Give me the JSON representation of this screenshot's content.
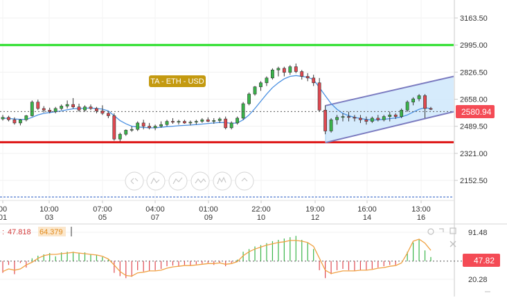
{
  "chart_data": [
    {
      "type": "candlestick",
      "title": "TA - ETH - USD",
      "current_price": "2580.94",
      "y_tick_labels": [
        "3163.50",
        "2995.00",
        "2826.50",
        "2658.00",
        "2489.50",
        "2321.00",
        "2152.50"
      ],
      "ylim": [
        2060,
        3260
      ],
      "x_tick_labels": [
        {
          "time": "00",
          "date": "01"
        },
        {
          "time": "10:00",
          "date": "03"
        },
        {
          "time": "07:00",
          "date": "05"
        },
        {
          "time": "04:00",
          "date": "07"
        },
        {
          "time": "01:00",
          "date": "09"
        },
        {
          "time": "22:00",
          "date": "10"
        },
        {
          "time": "19:00",
          "date": "12"
        },
        {
          "time": "16:00",
          "date": "14"
        },
        {
          "time": "13:00",
          "date": "16"
        }
      ],
      "horizontal_levels": [
        {
          "value": 2995,
          "color": "#22dd22"
        },
        {
          "value": 2390,
          "color": "#dd1111"
        }
      ],
      "channel": {
        "upper": [
          2618,
          2800
        ],
        "lower": [
          2388,
          2580
        ],
        "fill": "#cfe8fb",
        "stroke": "#7b7bc0"
      },
      "candles": [
        [
          2535,
          2560,
          2525,
          2545
        ],
        [
          2545,
          2555,
          2520,
          2530
        ],
        [
          2530,
          2545,
          2500,
          2510
        ],
        [
          2510,
          2535,
          2495,
          2530
        ],
        [
          2530,
          2560,
          2520,
          2555
        ],
        [
          2555,
          2650,
          2550,
          2640
        ],
        [
          2640,
          2655,
          2590,
          2600
        ],
        [
          2600,
          2615,
          2575,
          2590
        ],
        [
          2590,
          2605,
          2570,
          2580
        ],
        [
          2580,
          2610,
          2570,
          2600
        ],
        [
          2600,
          2625,
          2590,
          2615
        ],
        [
          2615,
          2650,
          2600,
          2625
        ],
        [
          2625,
          2665,
          2600,
          2610
        ],
        [
          2610,
          2630,
          2580,
          2590
        ],
        [
          2590,
          2620,
          2580,
          2610
        ],
        [
          2610,
          2625,
          2590,
          2600
        ],
        [
          2600,
          2610,
          2570,
          2585
        ],
        [
          2585,
          2620,
          2560,
          2570
        ],
        [
          2570,
          2580,
          2540,
          2555
        ],
        [
          2555,
          2570,
          2400,
          2410
        ],
        [
          2410,
          2450,
          2395,
          2440
        ],
        [
          2440,
          2470,
          2430,
          2465
        ],
        [
          2465,
          2490,
          2455,
          2470
        ],
        [
          2470,
          2520,
          2460,
          2510
        ],
        [
          2510,
          2530,
          2470,
          2490
        ],
        [
          2490,
          2510,
          2470,
          2480
        ],
        [
          2480,
          2500,
          2465,
          2490
        ],
        [
          2490,
          2520,
          2480,
          2500
        ],
        [
          2500,
          2530,
          2490,
          2520
        ],
        [
          2520,
          2540,
          2505,
          2515
        ],
        [
          2515,
          2530,
          2500,
          2520
        ],
        [
          2520,
          2530,
          2505,
          2510
        ],
        [
          2510,
          2525,
          2495,
          2515
        ],
        [
          2515,
          2530,
          2500,
          2520
        ],
        [
          2520,
          2540,
          2510,
          2530
        ],
        [
          2530,
          2545,
          2515,
          2520
        ],
        [
          2520,
          2540,
          2505,
          2525
        ],
        [
          2525,
          2545,
          2510,
          2535
        ],
        [
          2535,
          2550,
          2470,
          2480
        ],
        [
          2480,
          2520,
          2470,
          2510
        ],
        [
          2510,
          2550,
          2500,
          2540
        ],
        [
          2540,
          2640,
          2530,
          2630
        ],
        [
          2630,
          2700,
          2620,
          2690
        ],
        [
          2690,
          2740,
          2680,
          2735
        ],
        [
          2735,
          2770,
          2710,
          2760
        ],
        [
          2760,
          2800,
          2740,
          2790
        ],
        [
          2790,
          2850,
          2780,
          2840
        ],
        [
          2840,
          2860,
          2800,
          2850
        ],
        [
          2850,
          2860,
          2800,
          2825
        ],
        [
          2825,
          2870,
          2810,
          2860
        ],
        [
          2860,
          2880,
          2820,
          2830
        ],
        [
          2830,
          2840,
          2780,
          2800
        ],
        [
          2800,
          2820,
          2770,
          2790
        ],
        [
          2790,
          2810,
          2740,
          2760
        ],
        [
          2760,
          2790,
          2580,
          2590
        ],
        [
          2590,
          2620,
          2440,
          2460
        ],
        [
          2460,
          2540,
          2450,
          2530
        ],
        [
          2530,
          2560,
          2500,
          2545
        ],
        [
          2545,
          2570,
          2520,
          2550
        ],
        [
          2550,
          2580,
          2520,
          2545
        ],
        [
          2545,
          2560,
          2520,
          2540
        ],
        [
          2540,
          2560,
          2510,
          2530
        ],
        [
          2530,
          2550,
          2500,
          2520
        ],
        [
          2520,
          2550,
          2510,
          2540
        ],
        [
          2540,
          2560,
          2520,
          2530
        ],
        [
          2530,
          2560,
          2520,
          2550
        ],
        [
          2550,
          2580,
          2520,
          2560
        ],
        [
          2560,
          2570,
          2535,
          2550
        ],
        [
          2550,
          2600,
          2540,
          2590
        ],
        [
          2590,
          2650,
          2580,
          2640
        ],
        [
          2640,
          2670,
          2620,
          2660
        ],
        [
          2660,
          2690,
          2645,
          2680
        ],
        [
          2680,
          2690,
          2540,
          2600
        ],
        [
          2600,
          2610,
          2590,
          2595
        ]
      ],
      "ma": [
        2540,
        2538,
        2535,
        2533,
        2532,
        2545,
        2560,
        2570,
        2575,
        2580,
        2585,
        2592,
        2598,
        2600,
        2602,
        2603,
        2600,
        2596,
        2585,
        2555,
        2525,
        2505,
        2490,
        2485,
        2482,
        2480,
        2480,
        2483,
        2487,
        2490,
        2493,
        2495,
        2497,
        2500,
        2503,
        2507,
        2510,
        2513,
        2512,
        2508,
        2510,
        2530,
        2560,
        2600,
        2645,
        2690,
        2730,
        2760,
        2785,
        2800,
        2805,
        2800,
        2795,
        2780,
        2730,
        2680,
        2630,
        2595,
        2570,
        2555,
        2545,
        2538,
        2532,
        2528,
        2530,
        2533,
        2537,
        2541,
        2548,
        2560,
        2578,
        2595,
        2605,
        2600
      ],
      "indicator": {
        "value_a_label": "47.818",
        "value_b_label": "64.379",
        "current_label": "47.82",
        "y_tick_labels": [
          "91.48",
          "20.28"
        ],
        "ylim": [
          12,
          98
        ],
        "midline": 47.818,
        "bars": [
          30,
          42,
          28,
          45,
          38,
          52,
          56,
          58,
          60,
          55,
          61,
          62,
          62,
          60,
          61,
          58,
          57,
          54,
          50,
          30,
          25,
          22,
          24,
          34,
          32,
          33,
          34,
          36,
          40,
          41,
          40,
          42,
          41,
          43,
          44,
          45,
          42,
          45,
          40,
          45,
          50,
          62,
          66,
          70,
          72,
          75,
          78,
          80,
          82,
          84,
          86,
          80,
          76,
          66,
          34,
          22,
          28,
          34,
          36,
          34,
          33,
          34,
          34,
          36,
          38,
          40,
          42,
          42,
          48,
          62,
          76,
          80,
          64,
          54
        ],
        "line": [
          32,
          36,
          34,
          36,
          42,
          46,
          52,
          56,
          58,
          58,
          59,
          60,
          61,
          60,
          59,
          58,
          57,
          55,
          51,
          42,
          32,
          26,
          25,
          30,
          31,
          33,
          33,
          34,
          37,
          39,
          40,
          41,
          41,
          42,
          43,
          44,
          44,
          45,
          43,
          44,
          47,
          56,
          62,
          66,
          69,
          72,
          74,
          76,
          77,
          79,
          79,
          78,
          76,
          70,
          52,
          34,
          29,
          31,
          33,
          33,
          33,
          34,
          34,
          35,
          37,
          38,
          40,
          41,
          45,
          60,
          78,
          81,
          75,
          64
        ]
      }
    }
  ]
}
